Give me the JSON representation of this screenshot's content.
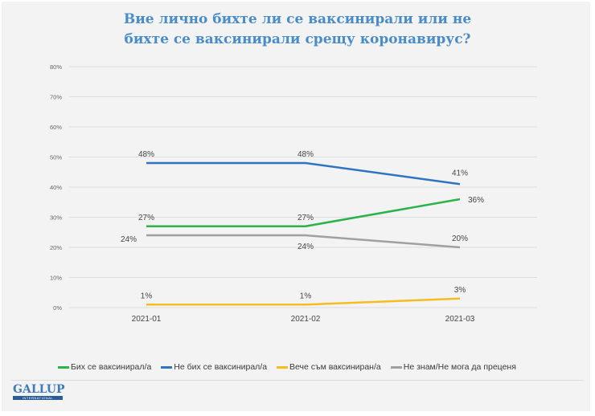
{
  "chart_data": {
    "type": "line",
    "title": "Вие лично бихте ли се ваксинирали или не бихте се ваксинирали срещу коронавирус?",
    "title_lines": [
      "Вие лично бихте ли се ваксинирали или не",
      "бихте се ваксинирали срещу коронавирус?"
    ],
    "categories": [
      "2021-01",
      "2021-02",
      "2021-03"
    ],
    "ylim": [
      0,
      80
    ],
    "yticks": [
      "0%",
      "10%",
      "20%",
      "30%",
      "40%",
      "50%",
      "60%",
      "70%",
      "80%"
    ],
    "ytick_values": [
      0,
      10,
      20,
      30,
      40,
      50,
      60,
      70,
      80
    ],
    "grid": true,
    "legend_position": "bottom",
    "xlabel": "",
    "ylabel": "",
    "series": [
      {
        "name": "Бих се ваксинирал/а",
        "color": "#2bb34a",
        "values": [
          27,
          27,
          36
        ],
        "labels": [
          "27%",
          "27%",
          "36%"
        ]
      },
      {
        "name": "Не бих се ваксинирал/а",
        "color": "#2e74c0",
        "values": [
          48,
          48,
          41
        ],
        "labels": [
          "48%",
          "48%",
          "41%"
        ]
      },
      {
        "name": "Вече съм ваксиниран/а",
        "color": "#f5bd1f",
        "values": [
          1,
          1,
          3
        ],
        "labels": [
          "1%",
          "1%",
          "3%"
        ]
      },
      {
        "name": "Не знам/Не мога да преценя",
        "color": "#a0a0a0",
        "values": [
          24,
          24,
          20
        ],
        "labels": [
          "24%",
          "24%",
          "20%"
        ]
      }
    ]
  },
  "logo": {
    "word": "GALLUP",
    "sub": "INTERNATIONAL"
  }
}
